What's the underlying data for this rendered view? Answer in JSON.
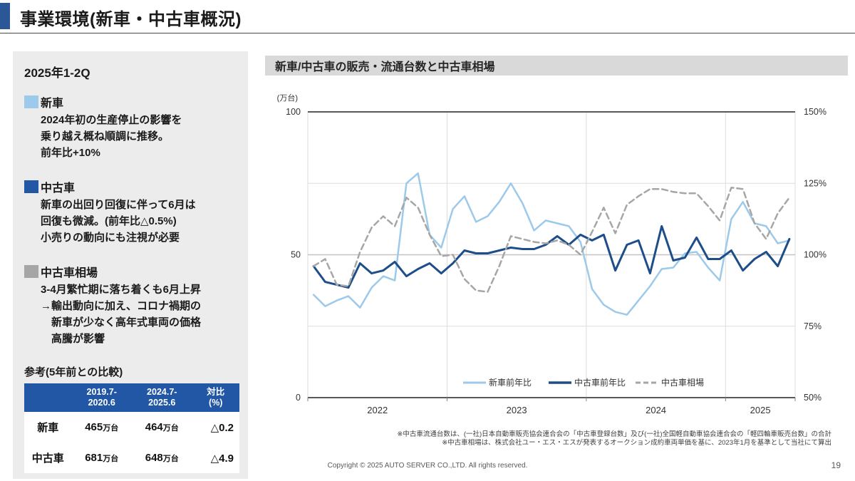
{
  "slide": {
    "title": "事業環境(新車・中古車概況)",
    "page_number": "19",
    "copyright": "Copyright © 2025 AUTO SERVER CO.,LTD.  All rights reserved."
  },
  "left_panel": {
    "heading": "2025年1-2Q",
    "notes": [
      {
        "marker_color": "#9DC9EA",
        "title": "新車",
        "lines": [
          "2024年初の生産停止の影響を",
          "乗り越え概ね順調に推移。",
          "前年比+10%"
        ]
      },
      {
        "marker_color": "#2157A5",
        "title": "中古車",
        "lines": [
          "新車の出回り回復に伴って6月は",
          "回復も微減。(前年比△0.5%)",
          "小売りの動向にも注視が必要"
        ]
      },
      {
        "marker_color": "#A6A6A6",
        "title": "中古車相場",
        "lines": [
          "3-4月繁忙期に落ち着くも6月上昇",
          "→輸出動向に加え、コロナ禍期の",
          "　新車が少なく高年式車両の価格",
          "　高騰が影響"
        ]
      }
    ],
    "reference": {
      "title": "参考(5年前との比較)",
      "header": {
        "col1": [
          "2019.7-",
          "2020.6"
        ],
        "col2": [
          "2024.7-",
          "2025.6"
        ],
        "col3": [
          "対比",
          "(%)"
        ]
      },
      "rows": [
        {
          "label": "新車",
          "old_value": "465",
          "new_value": "464",
          "unit": "万台",
          "diff": "△0.2"
        },
        {
          "label": "中古車",
          "old_value": "681",
          "new_value": "648",
          "unit": "万台",
          "diff": "△4.9"
        }
      ]
    }
  },
  "chart_section": {
    "header": "新車/中古車の販売・流通台数と中古車相場",
    "footnotes": [
      "※中古車流通台数は、(一社)日本自動車販売協会連合会の「中古車登録台数」及び(一社)全国軽自動車協会連合会の「軽四輪車販売台数」の合計",
      "※中古車相場は、株式会社ユー・エス・エスが発表するオークション成約車両単価を基に、2023年1月を基準として当社にて算出"
    ]
  },
  "chart_data": {
    "type": "line",
    "title": "新車/中古車の販売・流通台数と中古車相場",
    "x_unit": "month",
    "x_start": "2022-01",
    "x_end": "2025-06",
    "year_labels": [
      "2022",
      "2023",
      "2024",
      "2025"
    ],
    "left_axis": {
      "label": "(万台)",
      "ticks": [
        0,
        50,
        100
      ],
      "range": [
        0,
        100
      ],
      "gridlines": [
        25,
        50,
        75
      ]
    },
    "right_axis": {
      "ticks": [
        "150%",
        "125%",
        "100%",
        "75%",
        "50%"
      ],
      "range": [
        50,
        150
      ]
    },
    "grid": true,
    "legend_position": "bottom-inside",
    "series": [
      {
        "name": "新車前年比",
        "color": "#9DC9EA",
        "style": "solid",
        "axis": "left",
        "values": [
          36,
          32,
          34,
          35.5,
          31.5,
          38.5,
          42.5,
          41,
          75,
          78.5,
          57,
          52.5,
          66,
          70.5,
          61.5,
          63.5,
          68.5,
          75,
          68,
          58.5,
          62,
          61,
          60,
          54.5,
          38,
          32.5,
          30,
          29,
          34,
          39,
          45,
          45.5,
          50.5,
          51,
          45.5,
          41,
          62.5,
          68.5,
          61,
          60,
          54,
          55
        ]
      },
      {
        "name": "中古車前年比",
        "color": "#1D4E89",
        "style": "solid",
        "axis": "left",
        "values": [
          46,
          40.5,
          39.5,
          38.5,
          47,
          43.5,
          44.5,
          47.5,
          42.5,
          45,
          47,
          43.5,
          47,
          51.5,
          50.5,
          50.5,
          51.5,
          52.5,
          52,
          52,
          53.5,
          56.5,
          53.5,
          57,
          55,
          57,
          44.5,
          53.5,
          55,
          43.5,
          60,
          48,
          49,
          56,
          48.5,
          48.5,
          51.5,
          44.5,
          48.5,
          51,
          46,
          55.5
        ]
      },
      {
        "name": "中古車相場",
        "color": "#A6A6A6",
        "style": "dashed",
        "axis": "right",
        "values": [
          96,
          98.5,
          89.5,
          89,
          101,
          109.5,
          113.5,
          110,
          120,
          116.5,
          107,
          99.5,
          100,
          91.5,
          87.5,
          87,
          96,
          106.5,
          105.5,
          104.5,
          104,
          105,
          103.5,
          100,
          108,
          116.5,
          107.5,
          117.5,
          120.5,
          123,
          123,
          122,
          121.5,
          121.5,
          117,
          112,
          123.5,
          123,
          111,
          105.5,
          114.5,
          120
        ]
      }
    ]
  },
  "colors": {
    "accent_blue": "#2B5797",
    "table_header_blue": "#2157A5",
    "panel_bg": "#ECECEC",
    "chart_header_bg": "#D9D9D9",
    "light_blue_line": "#9DC9EA",
    "dark_blue_line": "#1D4E89",
    "gray_line": "#A6A6A6"
  }
}
